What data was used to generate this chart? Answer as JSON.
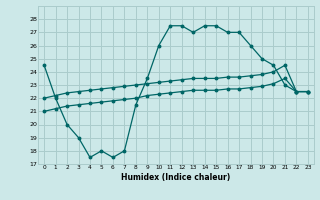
{
  "xlabel": "Humidex (Indice chaleur)",
  "bg_color": "#cce8e8",
  "grid_color": "#aacccc",
  "line_color": "#006666",
  "ylim": [
    17,
    29
  ],
  "xlim": [
    -0.5,
    23.5
  ],
  "yticks": [
    17,
    18,
    19,
    20,
    21,
    22,
    23,
    24,
    25,
    26,
    27,
    28
  ],
  "xticks": [
    0,
    1,
    2,
    3,
    4,
    5,
    6,
    7,
    8,
    9,
    10,
    11,
    12,
    13,
    14,
    15,
    16,
    17,
    18,
    19,
    20,
    21,
    22,
    23
  ],
  "line1_x": [
    0,
    1,
    2,
    3,
    4,
    5,
    6,
    7,
    8,
    9,
    10,
    11,
    12,
    13,
    14,
    15,
    16,
    17,
    18,
    19,
    20,
    21,
    22,
    23
  ],
  "line1_y": [
    24.5,
    22.0,
    20.0,
    19.0,
    17.5,
    18.0,
    17.5,
    18.0,
    21.5,
    23.5,
    26.0,
    27.5,
    27.5,
    27.0,
    27.5,
    27.5,
    27.0,
    27.0,
    26.0,
    25.0,
    24.5,
    23.0,
    22.5,
    22.5
  ],
  "line2_x": [
    0,
    1,
    2,
    3,
    4,
    5,
    6,
    7,
    8,
    9,
    10,
    11,
    12,
    13,
    14,
    15,
    16,
    17,
    18,
    19,
    20,
    21,
    22,
    23
  ],
  "line2_y": [
    22.0,
    22.2,
    22.4,
    22.5,
    22.6,
    22.7,
    22.8,
    22.9,
    23.0,
    23.1,
    23.2,
    23.3,
    23.4,
    23.5,
    23.5,
    23.5,
    23.6,
    23.6,
    23.7,
    23.8,
    24.0,
    24.5,
    22.5,
    22.5
  ],
  "line3_x": [
    0,
    1,
    2,
    3,
    4,
    5,
    6,
    7,
    8,
    9,
    10,
    11,
    12,
    13,
    14,
    15,
    16,
    17,
    18,
    19,
    20,
    21,
    22,
    23
  ],
  "line3_y": [
    21.0,
    21.2,
    21.4,
    21.5,
    21.6,
    21.7,
    21.8,
    21.9,
    22.0,
    22.2,
    22.3,
    22.4,
    22.5,
    22.6,
    22.6,
    22.6,
    22.7,
    22.7,
    22.8,
    22.9,
    23.1,
    23.5,
    22.5,
    22.5
  ]
}
